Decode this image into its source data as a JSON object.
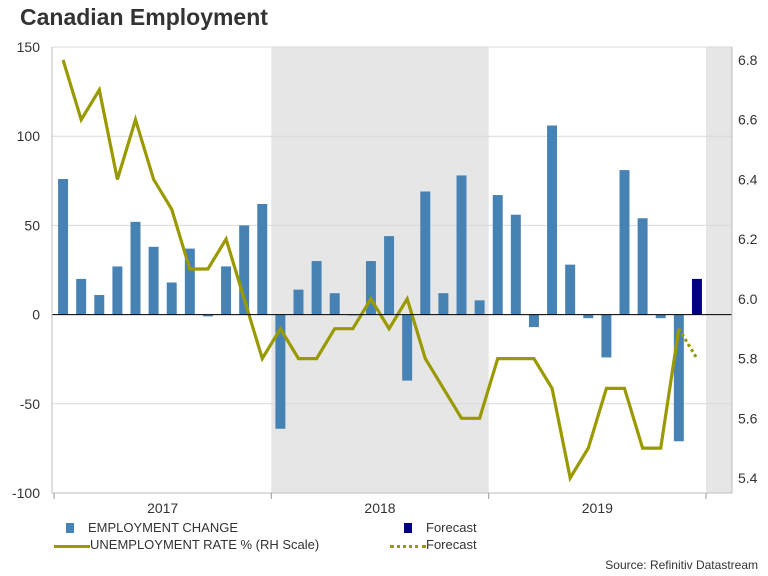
{
  "chart_data": {
    "type": "bar+line",
    "title": "Canadian Employment",
    "source": "Source: Refinitiv Datastream",
    "left_axis": {
      "ylim": [
        -100,
        150
      ],
      "ticks": [
        "150",
        "100",
        "50",
        "0",
        "-50",
        "-100"
      ],
      "tick_values": [
        150,
        100,
        50,
        0,
        -50,
        -100
      ]
    },
    "right_axis": {
      "ylim": [
        5.4,
        6.8
      ],
      "ticks": [
        "6.8",
        "6.6",
        "6.4",
        "6.2",
        "6.0",
        "5.8",
        "5.6",
        "5.4"
      ],
      "tick_values": [
        6.8,
        6.6,
        6.4,
        6.2,
        6.0,
        5.8,
        5.6,
        5.4
      ]
    },
    "x_year_labels": [
      "2017",
      "2018",
      "2019"
    ],
    "shaded_periods": [
      "2018",
      "2020"
    ],
    "months": [
      "2017-01",
      "2017-02",
      "2017-03",
      "2017-04",
      "2017-05",
      "2017-06",
      "2017-07",
      "2017-08",
      "2017-09",
      "2017-10",
      "2017-11",
      "2017-12",
      "2018-01",
      "2018-02",
      "2018-03",
      "2018-04",
      "2018-05",
      "2018-06",
      "2018-07",
      "2018-08",
      "2018-09",
      "2018-10",
      "2018-11",
      "2018-12",
      "2019-01",
      "2019-02",
      "2019-03",
      "2019-04",
      "2019-05",
      "2019-06",
      "2019-07",
      "2019-08",
      "2019-09",
      "2019-10",
      "2019-11",
      "2019-12"
    ],
    "series": [
      {
        "name": "EMPLOYMENT CHANGE",
        "type": "bar",
        "axis": "left",
        "color": "#4682b4",
        "values": [
          76,
          20,
          11,
          27,
          52,
          38,
          18,
          37,
          -1,
          27,
          50,
          62,
          -64,
          14,
          30,
          12,
          0,
          30,
          44,
          -37,
          69,
          12,
          78,
          8,
          67,
          56,
          -7,
          106,
          28,
          -2,
          -24,
          81,
          54,
          -2,
          -71
        ]
      },
      {
        "name": "Forecast",
        "type": "bar",
        "axis": "left",
        "color": "#000080",
        "index": 35,
        "value": 20
      },
      {
        "name": "UNEMPLOYMENT RATE % (RH Scale)",
        "type": "line",
        "axis": "right",
        "color": "#9a9a00",
        "values": [
          6.8,
          6.6,
          6.7,
          6.4,
          6.6,
          6.4,
          6.3,
          6.1,
          6.1,
          6.2,
          6.0,
          5.8,
          5.9,
          5.8,
          5.8,
          5.9,
          5.9,
          6.0,
          5.9,
          6.0,
          5.8,
          5.7,
          5.6,
          5.6,
          5.8,
          5.8,
          5.8,
          5.7,
          5.4,
          5.5,
          5.7,
          5.7,
          5.5,
          5.5,
          5.9
        ]
      },
      {
        "name": "Forecast",
        "type": "line-dotted",
        "axis": "right",
        "color": "#9a9a00",
        "from_index": 34,
        "to_index": 35,
        "values": [
          5.9,
          5.8
        ]
      }
    ],
    "legend": [
      {
        "label": "EMPLOYMENT CHANGE",
        "swatch": "bar",
        "color": "#4682b4"
      },
      {
        "label": "Forecast",
        "swatch": "bar",
        "color": "#000080"
      },
      {
        "label": "UNEMPLOYMENT RATE % (RH Scale)",
        "swatch": "line",
        "color": "#9a9a00"
      },
      {
        "label": "Forecast",
        "swatch": "dotted",
        "color": "#9a9a00"
      }
    ]
  }
}
